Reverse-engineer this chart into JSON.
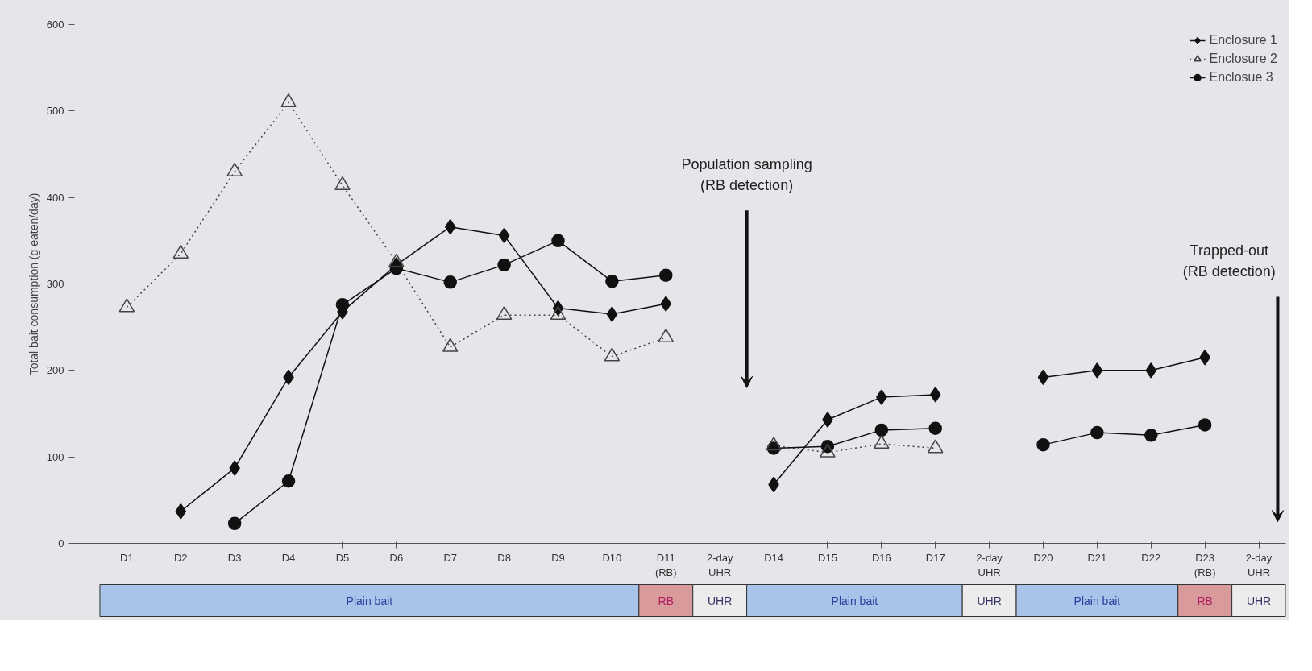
{
  "chart_data": {
    "type": "line",
    "categories": [
      "D1",
      "D2",
      "D3",
      "D4",
      "D5",
      "D6",
      "D7",
      "D8",
      "D9",
      "D10",
      "D11\n(RB)",
      "2-day\nUHR",
      "D14",
      "D15",
      "D16",
      "D17",
      "2-day\nUHR",
      "D20",
      "D21",
      "D22",
      "D23\n(RB)",
      "2-day\nUHR"
    ],
    "ylabel": "Total bait consumption (g eaten/day)",
    "ylim": [
      0,
      600
    ],
    "yticks": [
      0,
      100,
      200,
      300,
      400,
      500,
      600
    ],
    "legend": "top right",
    "series": [
      {
        "name": "Enclosure 1",
        "color": "#111111",
        "marker": "diamond",
        "line_style": "solid",
        "values": [
          null,
          37,
          87,
          192,
          268,
          322,
          366,
          356,
          272,
          265,
          277,
          null,
          68,
          143,
          169,
          172,
          null,
          192,
          200,
          200,
          215,
          null
        ]
      },
      {
        "name": "Enclosure 2",
        "color": "#444444",
        "marker": "triangle",
        "line_style": "dotted",
        "values": [
          273,
          335,
          430,
          510,
          414,
          325,
          227,
          264,
          264,
          216,
          238,
          null,
          113,
          105,
          115,
          110,
          null,
          null,
          null,
          null,
          null,
          null
        ]
      },
      {
        "name": "Enclosue 3",
        "color": "#111111",
        "marker": "circle",
        "line_style": "solid",
        "values": [
          null,
          null,
          23,
          72,
          276,
          318,
          302,
          322,
          350,
          303,
          310,
          null,
          110,
          112,
          131,
          133,
          null,
          114,
          128,
          125,
          137,
          null
        ]
      }
    ],
    "annotations": [
      "Population sampling\n(RB detection)",
      "Trapped-out\n(RB detection)",
      "Plain bait",
      "RB",
      "UHR",
      "Plain bait",
      "UHR",
      "Plain bait",
      "RB",
      "UHR"
    ]
  }
}
